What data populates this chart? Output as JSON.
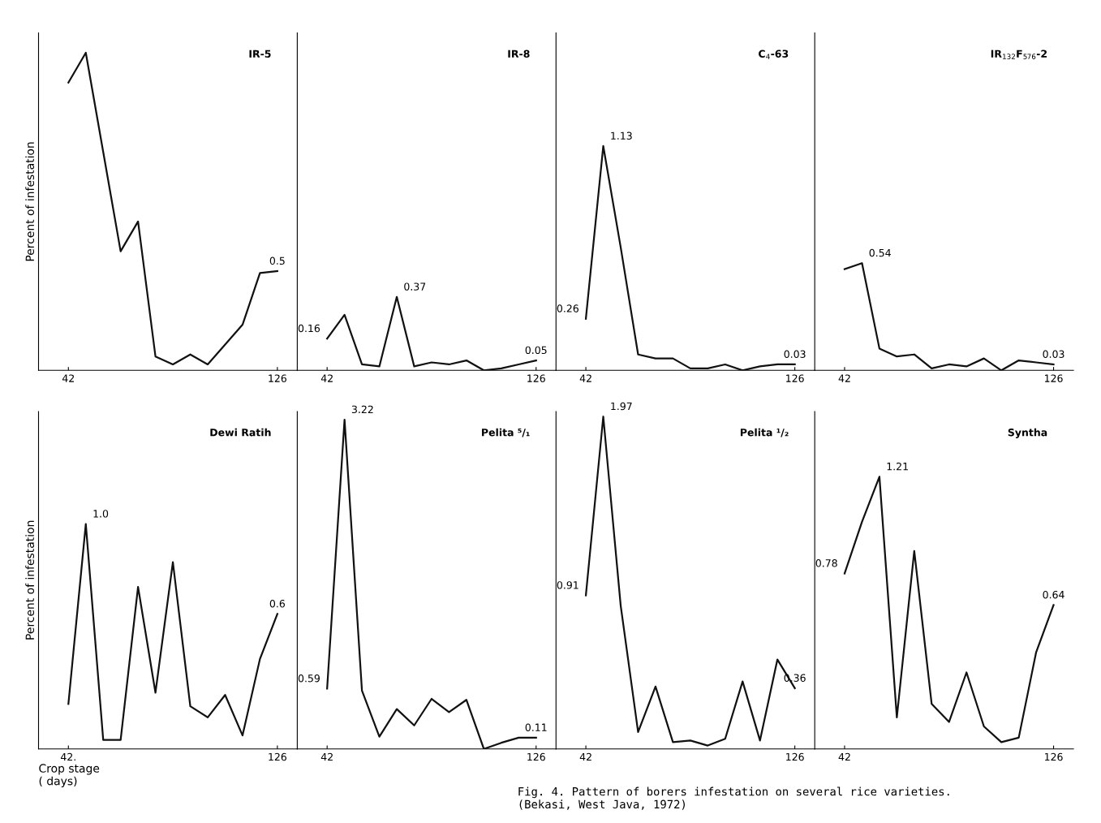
{
  "chart_data": [
    {
      "type": "line",
      "title": "IR-5",
      "ylabel": "Percent of infestation",
      "x": [
        42,
        49,
        56,
        63,
        70,
        77,
        84,
        91,
        98,
        105,
        112,
        119,
        126
      ],
      "xlim": [
        30,
        134
      ],
      "xticks": [
        42,
        126
      ],
      "ylim": [
        0,
        1.7
      ],
      "tick_labels": "x",
      "color": "#111111",
      "values": [
        1.45,
        1.6,
        1.1,
        0.6,
        0.75,
        0.07,
        0.03,
        0.08,
        0.03,
        0.13,
        0.23,
        0.49,
        0.5
      ],
      "value_labels": [
        null,
        null,
        null,
        null,
        null,
        null,
        null,
        null,
        null,
        null,
        null,
        null,
        "0.5"
      ]
    },
    {
      "type": "line",
      "title": "IR-8",
      "x": [
        42,
        49,
        56,
        63,
        70,
        77,
        84,
        91,
        98,
        105,
        112,
        119,
        126
      ],
      "xlim": [
        30,
        134
      ],
      "xticks": [
        42,
        126
      ],
      "ylim": [
        0,
        1.7
      ],
      "tick_labels": "x",
      "color": "#111111",
      "values": [
        0.16,
        0.28,
        0.03,
        0.02,
        0.37,
        0.02,
        0.04,
        0.03,
        0.05,
        0.0,
        0.01,
        0.03,
        0.05
      ],
      "value_labels": [
        "0.16",
        null,
        null,
        null,
        "0.37",
        null,
        null,
        null,
        null,
        null,
        null,
        null,
        "0.05"
      ]
    },
    {
      "type": "line",
      "title": "C$_{4}$-63",
      "x": [
        42,
        49,
        56,
        63,
        70,
        77,
        84,
        91,
        98,
        105,
        112,
        119,
        126
      ],
      "xlim": [
        30,
        134
      ],
      "xticks": [
        42,
        126
      ],
      "ylim": [
        0,
        1.7
      ],
      "tick_labels": "x",
      "color": "#111111",
      "values": [
        0.26,
        1.13,
        0.62,
        0.08,
        0.06,
        0.06,
        0.01,
        0.01,
        0.03,
        0.0,
        0.02,
        0.03,
        0.03
      ],
      "value_labels": [
        "0.26",
        "1.13",
        null,
        null,
        null,
        null,
        null,
        null,
        null,
        null,
        null,
        null,
        "0.03"
      ]
    },
    {
      "type": "line",
      "title": "IR$_{132}$F$_{576}$-2",
      "x": [
        42,
        49,
        56,
        63,
        70,
        77,
        84,
        91,
        98,
        105,
        112,
        119,
        126
      ],
      "xlim": [
        30,
        134
      ],
      "xticks": [
        42,
        126
      ],
      "ylim": [
        0,
        1.7
      ],
      "tick_labels": "x",
      "color": "#111111",
      "values": [
        0.51,
        0.54,
        0.11,
        0.07,
        0.08,
        0.01,
        0.03,
        0.02,
        0.06,
        0.0,
        0.05,
        0.04,
        0.03
      ],
      "value_labels": [
        null,
        "0.54",
        null,
        null,
        null,
        null,
        null,
        null,
        null,
        null,
        null,
        null,
        "0.03"
      ]
    },
    {
      "type": "line",
      "title": "Dewi Ratih",
      "ylabel": "Percent of infestation",
      "xlabel": "Crop stage\n( days)",
      "x": [
        42,
        49,
        56,
        63,
        70,
        77,
        84,
        91,
        98,
        105,
        112,
        119,
        126
      ],
      "xlim": [
        30,
        134
      ],
      "xticks": [
        {
          "value": 42,
          "label": "42."
        },
        126
      ],
      "ylim": [
        0,
        1.5
      ],
      "tick_labels": "x",
      "color": "#111111",
      "values": [
        0.2,
        1.0,
        0.04,
        0.04,
        0.72,
        0.25,
        0.83,
        0.19,
        0.14,
        0.24,
        0.06,
        0.4,
        0.6
      ],
      "value_labels": [
        null,
        "1.0",
        null,
        null,
        null,
        null,
        null,
        null,
        null,
        null,
        null,
        null,
        "0.6"
      ]
    },
    {
      "type": "line",
      "title": "Pelita ⁵/₁",
      "x": [
        42,
        49,
        56,
        63,
        70,
        77,
        84,
        91,
        98,
        105,
        112,
        119,
        126
      ],
      "xlim": [
        30,
        134
      ],
      "xticks": [
        42,
        126
      ],
      "ylim": [
        0,
        3.3
      ],
      "tick_labels": "x",
      "color": "#111111",
      "values": [
        0.59,
        3.22,
        0.57,
        0.12,
        0.39,
        0.23,
        0.49,
        0.36,
        0.48,
        0.0,
        0.06,
        0.11,
        0.11
      ],
      "value_labels": [
        "0.59",
        "3.22",
        null,
        null,
        null,
        null,
        null,
        null,
        null,
        null,
        null,
        null,
        "0.11"
      ]
    },
    {
      "type": "line",
      "title": "Pelita ¹/₂",
      "x": [
        42,
        49,
        56,
        63,
        70,
        77,
        84,
        91,
        98,
        105,
        112,
        119,
        126
      ],
      "xlim": [
        30,
        134
      ],
      "xticks": [
        42,
        126
      ],
      "ylim": [
        0,
        2.0
      ],
      "tick_labels": "x",
      "color": "#111111",
      "values": [
        0.91,
        1.97,
        0.85,
        0.1,
        0.37,
        0.04,
        0.05,
        0.02,
        0.06,
        0.4,
        0.05,
        0.53,
        0.36
      ],
      "value_labels": [
        "0.91",
        "1.97",
        null,
        null,
        null,
        null,
        null,
        null,
        null,
        null,
        null,
        null,
        "0.36"
      ]
    },
    {
      "type": "line",
      "title": "Syntha",
      "x": [
        42,
        49,
        56,
        63,
        70,
        77,
        84,
        91,
        98,
        105,
        112,
        119,
        126
      ],
      "xlim": [
        30,
        134
      ],
      "xticks": [
        42,
        126
      ],
      "ylim": [
        0,
        1.5
      ],
      "tick_labels": "x",
      "color": "#111111",
      "values": [
        0.78,
        1.01,
        1.21,
        0.14,
        0.88,
        0.2,
        0.12,
        0.34,
        0.1,
        0.03,
        0.05,
        0.43,
        0.64
      ],
      "value_labels": [
        "0.78",
        null,
        "1.21",
        null,
        null,
        null,
        null,
        null,
        null,
        null,
        null,
        null,
        "0.64"
      ],
      "annotations": [
        "Fig. 4. Pattern of borers infestation on several rice varieties.\n(Bekasi, West Java, 1972)"
      ]
    }
  ]
}
